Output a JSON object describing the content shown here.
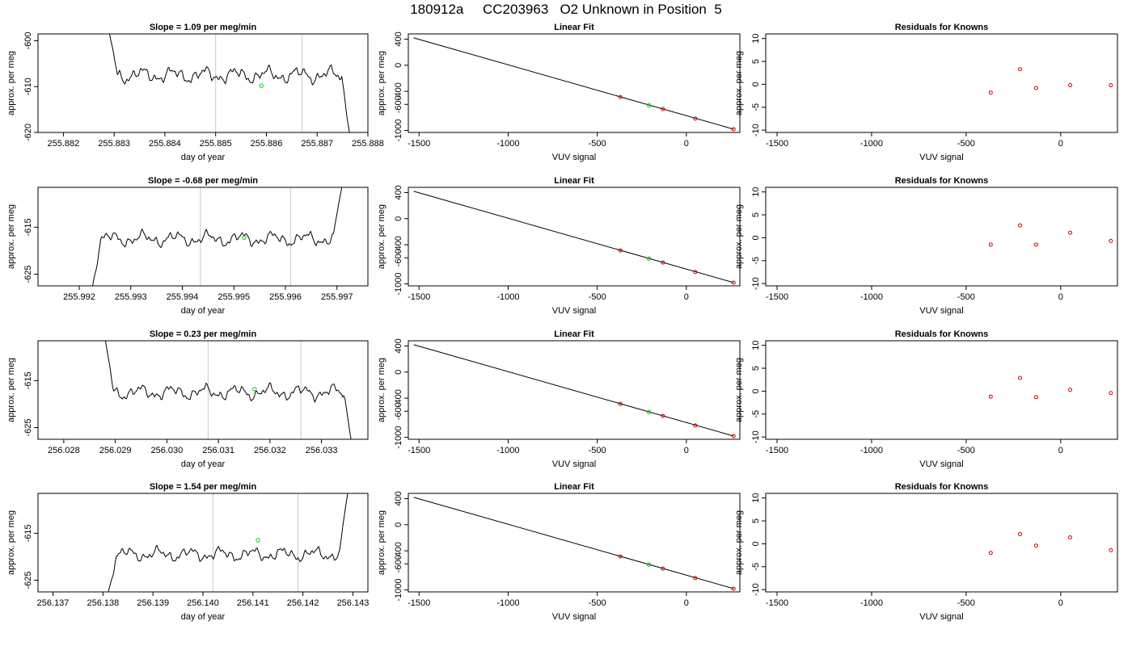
{
  "page_title": "180912a     CC203963   O2 Unknown in Position  5",
  "colors": {
    "trace": "#000000",
    "known_points": "#cc0000",
    "unknown_point": "#00cc00",
    "marker_lines": "#c8c8c8"
  },
  "chart_data": [
    {
      "type": "line",
      "panel": "time-series",
      "row": 1,
      "title": "Slope =  1.09  per meg/min",
      "xlabel": "day of year",
      "ylabel": "approx. per meg",
      "xlim": [
        255.8815,
        255.888
      ],
      "ylim": [
        -620,
        -598.5
      ],
      "xticks": [
        "255.882",
        "255.883",
        "255.884",
        "255.885",
        "255.886",
        "255.887",
        "255.888"
      ],
      "xtick_values": [
        255.882,
        255.883,
        255.884,
        255.885,
        255.886,
        255.887,
        255.888
      ],
      "yticks": [
        "-620",
        "-610",
        "-600"
      ],
      "ytick_values": [
        -620,
        -610,
        -600
      ],
      "series": [
        {
          "x_start": 255.8829,
          "x_end": 255.88765,
          "base": -607.5,
          "amplitude": 1.9,
          "drift_per_day": 0,
          "start_value": -598,
          "end_value": -621
        }
      ],
      "vlines": [
        255.885,
        255.8867
      ],
      "unknown_point": {
        "x": 255.8859,
        "y": -609.8
      }
    },
    {
      "type": "scatter",
      "panel": "linear-fit",
      "row": 1,
      "title": "Linear Fit",
      "xlabel": "VUV signal",
      "ylabel": "approx. per meg",
      "xlim": [
        -1560,
        300
      ],
      "ylim": [
        -1030,
        480
      ],
      "xticks": [
        "-1500",
        "-1000",
        "-500",
        "0"
      ],
      "xtick_values": [
        -1500,
        -1000,
        -500,
        0
      ],
      "yticks": [
        "-1000",
        "-600",
        "-400",
        "0",
        "400"
      ],
      "ytick_values": [
        -1000,
        -600,
        -400,
        0,
        400
      ],
      "fit_line": {
        "x": [
          -1530,
          265
        ],
        "y": [
          420,
          -980
        ]
      },
      "knowns": [
        {
          "x": -370,
          "y": -487
        },
        {
          "x": -132,
          "y": -672
        },
        {
          "x": 50,
          "y": -818
        },
        {
          "x": 265,
          "y": -980
        }
      ],
      "unknown": {
        "x": -210,
        "y": -612
      }
    },
    {
      "type": "scatter",
      "panel": "residuals",
      "row": 1,
      "title": "Residuals for Knowns",
      "xlabel": "VUV signal",
      "ylabel": "approx. per meg",
      "xlim": [
        -1560,
        300
      ],
      "ylim": [
        -10.5,
        11
      ],
      "xticks": [
        "-1500",
        "-1000",
        "-500",
        "0"
      ],
      "xtick_values": [
        -1500,
        -1000,
        -500,
        0
      ],
      "yticks": [
        "-10",
        "-5",
        "0",
        "5",
        "10"
      ],
      "ytick_values": [
        -10,
        -5,
        0,
        5,
        10
      ],
      "points": [
        {
          "x": -370,
          "y": -1.8
        },
        {
          "x": -215,
          "y": 3.3
        },
        {
          "x": -130,
          "y": -0.8
        },
        {
          "x": 50,
          "y": -0.2
        },
        {
          "x": 265,
          "y": -0.2
        }
      ]
    },
    {
      "type": "line",
      "panel": "time-series",
      "row": 2,
      "title": "Slope =  -0.68  per meg/min",
      "xlabel": "day of year",
      "ylabel": "approx. per meg",
      "xlim": [
        255.9912,
        255.9976
      ],
      "ylim": [
        -627.5,
        -606.5
      ],
      "xticks": [
        "255.992",
        "255.993",
        "255.994",
        "255.995",
        "255.996",
        "255.997"
      ],
      "xtick_values": [
        255.992,
        255.993,
        255.994,
        255.995,
        255.996,
        255.997
      ],
      "yticks": [
        "-625",
        "-615"
      ],
      "ytick_values": [
        -625,
        -615
      ],
      "series": [
        {
          "x_start": 255.99225,
          "x_end": 255.9971,
          "base": -617.5,
          "amplitude": 1.7,
          "drift_per_day": 0,
          "start_value": -628,
          "end_value": -606
        }
      ],
      "vlines": [
        255.99435,
        255.9961
      ],
      "unknown_point": {
        "x": 255.9952,
        "y": -617.2
      }
    },
    {
      "type": "scatter",
      "panel": "linear-fit",
      "row": 2,
      "title": "Linear Fit",
      "xlabel": "VUV signal",
      "ylabel": "approx. per meg",
      "xlim": [
        -1560,
        300
      ],
      "ylim": [
        -1030,
        480
      ],
      "xticks": [
        "-1500",
        "-1000",
        "-500",
        "0"
      ],
      "xtick_values": [
        -1500,
        -1000,
        -500,
        0
      ],
      "yticks": [
        "-1000",
        "-600",
        "-400",
        "0",
        "400"
      ],
      "ytick_values": [
        -1000,
        -600,
        -400,
        0,
        400
      ],
      "fit_line": {
        "x": [
          -1530,
          265
        ],
        "y": [
          420,
          -980
        ]
      },
      "knowns": [
        {
          "x": -370,
          "y": -487
        },
        {
          "x": -132,
          "y": -672
        },
        {
          "x": 50,
          "y": -818
        },
        {
          "x": 265,
          "y": -980
        }
      ],
      "unknown": {
        "x": -210,
        "y": -612
      }
    },
    {
      "type": "scatter",
      "panel": "residuals",
      "row": 2,
      "title": "Residuals for Knowns",
      "xlabel": "VUV signal",
      "ylabel": "approx. per meg",
      "xlim": [
        -1560,
        300
      ],
      "ylim": [
        -10.5,
        11
      ],
      "xticks": [
        "-1500",
        "-1000",
        "-500",
        "0"
      ],
      "xtick_values": [
        -1500,
        -1000,
        -500,
        0
      ],
      "yticks": [
        "-10",
        "-5",
        "0",
        "5",
        "10"
      ],
      "ytick_values": [
        -10,
        -5,
        0,
        5,
        10
      ],
      "points": [
        {
          "x": -370,
          "y": -1.5
        },
        {
          "x": -215,
          "y": 2.7
        },
        {
          "x": -130,
          "y": -1.5
        },
        {
          "x": 50,
          "y": 1.1
        },
        {
          "x": 265,
          "y": -0.7
        }
      ]
    },
    {
      "type": "line",
      "panel": "time-series",
      "row": 3,
      "title": "Slope =  0.23  per meg/min",
      "xlabel": "day of year",
      "ylabel": "approx. per meg",
      "xlim": [
        256.0275,
        256.0339
      ],
      "ylim": [
        -627.5,
        -606.5
      ],
      "xticks": [
        "256.028",
        "256.029",
        "256.030",
        "256.031",
        "256.032",
        "256.033"
      ],
      "xtick_values": [
        256.028,
        256.029,
        256.03,
        256.031,
        256.032,
        256.033
      ],
      "yticks": [
        "-625",
        "-615"
      ],
      "ytick_values": [
        -625,
        -615
      ],
      "series": [
        {
          "x_start": 256.0288,
          "x_end": 256.0336,
          "base": -617.5,
          "amplitude": 1.7,
          "drift_per_day": 0,
          "start_value": -606,
          "end_value": -629
        }
      ],
      "vlines": [
        256.0308,
        256.0326
      ],
      "unknown_point": {
        "x": 256.0317,
        "y": -616.8
      }
    },
    {
      "type": "scatter",
      "panel": "linear-fit",
      "row": 3,
      "title": "Linear Fit",
      "xlabel": "VUV signal",
      "ylabel": "approx. per meg",
      "xlim": [
        -1560,
        300
      ],
      "ylim": [
        -1030,
        480
      ],
      "xticks": [
        "-1500",
        "-1000",
        "-500",
        "0"
      ],
      "xtick_values": [
        -1500,
        -1000,
        -500,
        0
      ],
      "yticks": [
        "-1000",
        "-600",
        "-400",
        "0",
        "400"
      ],
      "ytick_values": [
        -1000,
        -600,
        -400,
        0,
        400
      ],
      "fit_line": {
        "x": [
          -1530,
          265
        ],
        "y": [
          420,
          -980
        ]
      },
      "knowns": [
        {
          "x": -370,
          "y": -487
        },
        {
          "x": -132,
          "y": -672
        },
        {
          "x": 50,
          "y": -818
        },
        {
          "x": 265,
          "y": -980
        }
      ],
      "unknown": {
        "x": -210,
        "y": -612
      }
    },
    {
      "type": "scatter",
      "panel": "residuals",
      "row": 3,
      "title": "Residuals for Knowns",
      "xlabel": "VUV signal",
      "ylabel": "approx. per meg",
      "xlim": [
        -1560,
        300
      ],
      "ylim": [
        -10.5,
        11
      ],
      "xticks": [
        "-1500",
        "-1000",
        "-500",
        "0"
      ],
      "xtick_values": [
        -1500,
        -1000,
        -500,
        0
      ],
      "yticks": [
        "-10",
        "-5",
        "0",
        "5",
        "10"
      ],
      "ytick_values": [
        -10,
        -5,
        0,
        5,
        10
      ],
      "points": [
        {
          "x": -370,
          "y": -1.2
        },
        {
          "x": -215,
          "y": 2.9
        },
        {
          "x": -130,
          "y": -1.3
        },
        {
          "x": 50,
          "y": 0.3
        },
        {
          "x": 265,
          "y": -0.4
        }
      ]
    },
    {
      "type": "line",
      "panel": "time-series",
      "row": 4,
      "title": "Slope =  1.54  per meg/min",
      "xlabel": "day of year",
      "ylabel": "approx. per meg",
      "xlim": [
        256.1367,
        256.1433
      ],
      "ylim": [
        -627.5,
        -606.5
      ],
      "xticks": [
        "256.137",
        "256.138",
        "256.139",
        "256.140",
        "256.141",
        "256.142",
        "256.143"
      ],
      "xtick_values": [
        256.137,
        256.138,
        256.139,
        256.14,
        256.141,
        256.142,
        256.143
      ],
      "yticks": [
        "-625",
        "-615"
      ],
      "ytick_values": [
        -625,
        -615
      ],
      "series": [
        {
          "x_start": 256.1381,
          "x_end": 256.1429,
          "base": -619.5,
          "amplitude": 1.6,
          "drift_per_day": 1100,
          "start_value": -628,
          "end_value": -606
        }
      ],
      "vlines": [
        256.1402,
        256.1419
      ],
      "unknown_point": {
        "x": 256.1411,
        "y": -616.5
      }
    },
    {
      "type": "scatter",
      "panel": "linear-fit",
      "row": 4,
      "title": "Linear Fit",
      "xlabel": "VUV signal",
      "ylabel": "approx. per meg",
      "xlim": [
        -1560,
        300
      ],
      "ylim": [
        -1030,
        480
      ],
      "xticks": [
        "-1500",
        "-1000",
        "-500",
        "0"
      ],
      "xtick_values": [
        -1500,
        -1000,
        -500,
        0
      ],
      "yticks": [
        "-1000",
        "-600",
        "-400",
        "0",
        "400"
      ],
      "ytick_values": [
        -1000,
        -600,
        -400,
        0,
        400
      ],
      "fit_line": {
        "x": [
          -1530,
          265
        ],
        "y": [
          420,
          -980
        ]
      },
      "knowns": [
        {
          "x": -370,
          "y": -487
        },
        {
          "x": -132,
          "y": -672
        },
        {
          "x": 50,
          "y": -818
        },
        {
          "x": 265,
          "y": -980
        }
      ],
      "unknown": {
        "x": -210,
        "y": -612
      }
    },
    {
      "type": "scatter",
      "panel": "residuals",
      "row": 4,
      "title": "Residuals for Knowns",
      "xlabel": "VUV signal",
      "ylabel": "approx. per meg",
      "xlim": [
        -1560,
        300
      ],
      "ylim": [
        -10.5,
        11
      ],
      "xticks": [
        "-1500",
        "-1000",
        "-500",
        "0"
      ],
      "xtick_values": [
        -1500,
        -1000,
        -500,
        0
      ],
      "yticks": [
        "-10",
        "-5",
        "0",
        "5",
        "10"
      ],
      "ytick_values": [
        -10,
        -5,
        0,
        5,
        10
      ],
      "points": [
        {
          "x": -370,
          "y": -2.0
        },
        {
          "x": -215,
          "y": 2.1
        },
        {
          "x": -130,
          "y": -0.4
        },
        {
          "x": 50,
          "y": 1.4
        },
        {
          "x": 265,
          "y": -1.4
        }
      ]
    }
  ]
}
